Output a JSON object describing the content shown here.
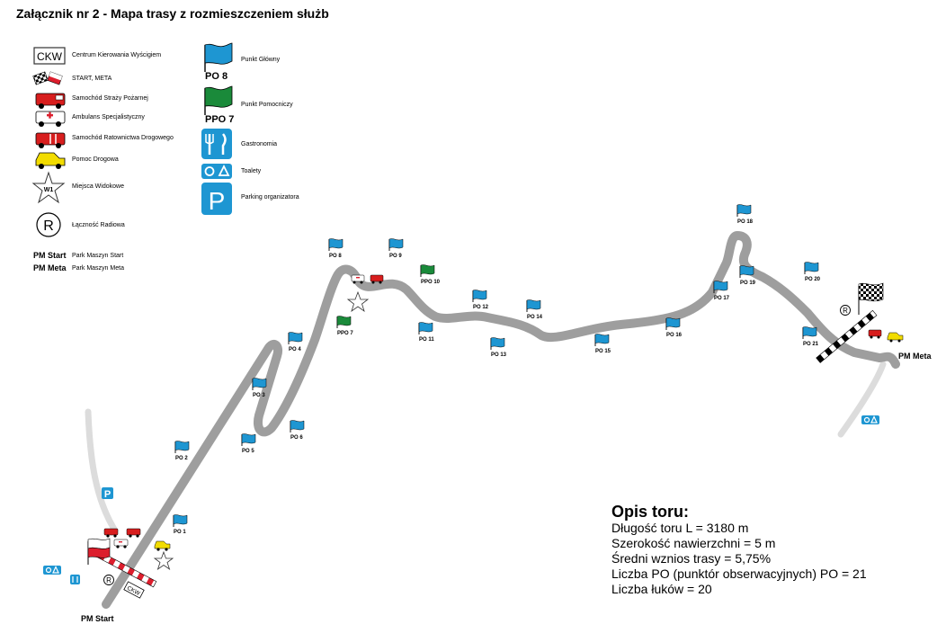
{
  "title": "Załącznik nr 2 - Mapa trasy z rozmieszczeniem służb",
  "legend": {
    "ckw_box": "CKW",
    "ckw": "Centrum Kierowania Wyścigiem",
    "start_meta": "START, META",
    "fire_truck": "Samochód Straży Pożarnej",
    "ambulance": "Ambulans Specjalistyczny",
    "rescue": "Samochód Ratownictwa Drogowego",
    "tow": "Pomoc Drogowa",
    "viewpoint_mark": "W1",
    "viewpoint": "Miejsca Widokowe",
    "radio_mark": "R",
    "radio": "Łączność Radiowa",
    "pm_start_bold": "PM Start",
    "pm_start": "Park Maszyn Start",
    "pm_meta_bold": "PM Meta",
    "pm_meta": "Park Maszyn Meta",
    "main_point_flag": "PO 8",
    "main_point": "Punkt Główny",
    "aux_point_flag": "PPO 7",
    "aux_point": "Punkt Pomocniczy",
    "food": "Gastronomia",
    "toilets": "Toalety",
    "parking_mark": "P",
    "parking": "Parking organizatora"
  },
  "posts": [
    {
      "label": "PO 1",
      "color": "blue"
    },
    {
      "label": "PO 2",
      "color": "blue"
    },
    {
      "label": "PO 3",
      "color": "blue"
    },
    {
      "label": "PO 4",
      "color": "blue"
    },
    {
      "label": "PO 5",
      "color": "blue"
    },
    {
      "label": "PO 6",
      "color": "blue"
    },
    {
      "label": "PPO 7",
      "color": "green"
    },
    {
      "label": "PO 8",
      "color": "blue"
    },
    {
      "label": "PO 9",
      "color": "blue"
    },
    {
      "label": "PPO 10",
      "color": "green"
    },
    {
      "label": "PO 11",
      "color": "blue"
    },
    {
      "label": "PO 12",
      "color": "blue"
    },
    {
      "label": "PO 13",
      "color": "blue"
    },
    {
      "label": "PO 14",
      "color": "blue"
    },
    {
      "label": "PO 15",
      "color": "blue"
    },
    {
      "label": "PO 16",
      "color": "blue"
    },
    {
      "label": "PO 17",
      "color": "blue"
    },
    {
      "label": "PO 18",
      "color": "blue"
    },
    {
      "label": "PO 19",
      "color": "blue"
    },
    {
      "label": "PO 20",
      "color": "blue"
    },
    {
      "label": "PO 21",
      "color": "blue"
    }
  ],
  "map_labels": {
    "pm_start": "PM Start",
    "pm_meta": "PM Meta",
    "ckw": "CKW",
    "radio": "R",
    "parking": "P",
    "viewpoint": "W1"
  },
  "description": {
    "title": "Opis toru:",
    "lines": [
      "Długość toru L = 3180 m",
      "Szerokość nawierzchni = 5 m",
      "Średni wznios trasy = 5,75%",
      "Liczba PO (punktór obserwacyjnych) PO = 21",
      "Liczba łuków = 20"
    ]
  },
  "colors": {
    "track": "#9e9e9e",
    "access_road": "#d9d9d9",
    "blue_flag": "#1e96d2",
    "green_flag": "#1a8a3a",
    "fire_red": "#d81e1e",
    "tow_yellow": "#f2dc00",
    "poland_red": "#dc1e2d"
  }
}
